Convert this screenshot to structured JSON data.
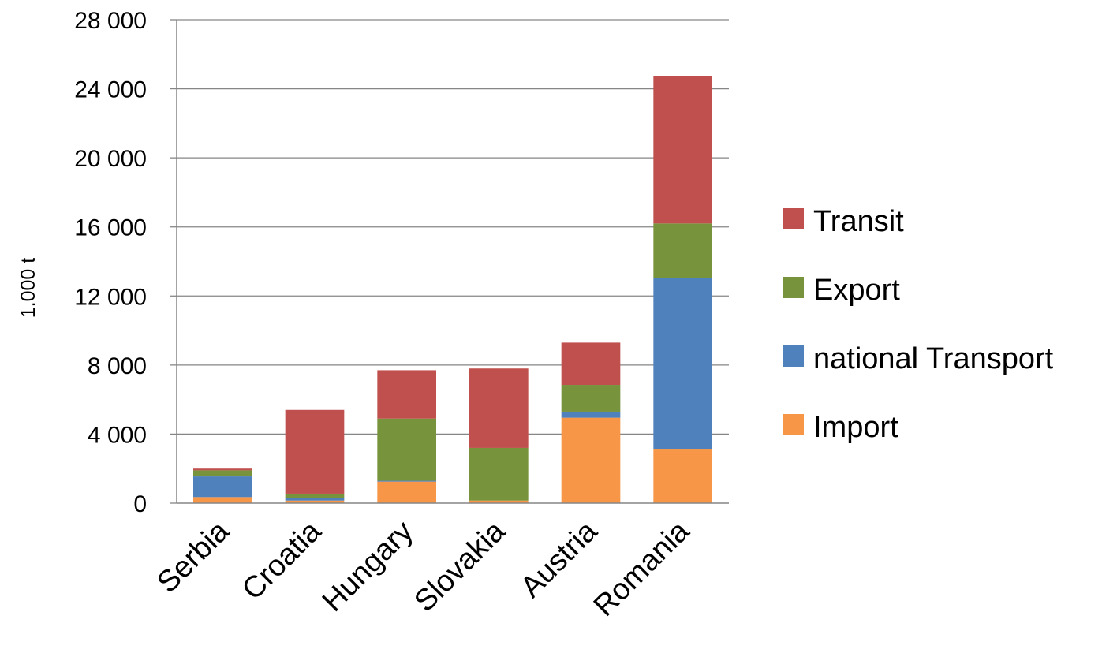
{
  "chart_data": {
    "type": "bar",
    "stacked": true,
    "ylabel": "1.000 t",
    "xlabel": "",
    "ylim": [
      0,
      28000
    ],
    "yticks": [
      0,
      4000,
      8000,
      12000,
      16000,
      20000,
      24000,
      28000
    ],
    "ytick_labels": [
      "0",
      "4 000",
      "8 000",
      "12 000",
      "16 000",
      "20 000",
      "24 000",
      "28 000"
    ],
    "grid": true,
    "legend_position": "right",
    "categories": [
      "Serbia",
      "Croatia",
      "Hungary",
      "Slovakia",
      "Austria",
      "Romania"
    ],
    "series": [
      {
        "name": "Import",
        "color": "#f79646",
        "values": [
          350,
          150,
          1250,
          150,
          4950,
          3150
        ]
      },
      {
        "name": "national Transport",
        "color": "#4f81bd",
        "values": [
          1200,
          150,
          50,
          0,
          350,
          9900
        ]
      },
      {
        "name": "Export",
        "color": "#77933c",
        "values": [
          350,
          250,
          3600,
          3050,
          1550,
          3150
        ]
      },
      {
        "name": "Transit",
        "color": "#c0504d",
        "values": [
          100,
          4850,
          2800,
          4600,
          2450,
          8550
        ]
      }
    ],
    "legend_order": [
      "Transit",
      "Export",
      "national Transport",
      "Import"
    ]
  }
}
